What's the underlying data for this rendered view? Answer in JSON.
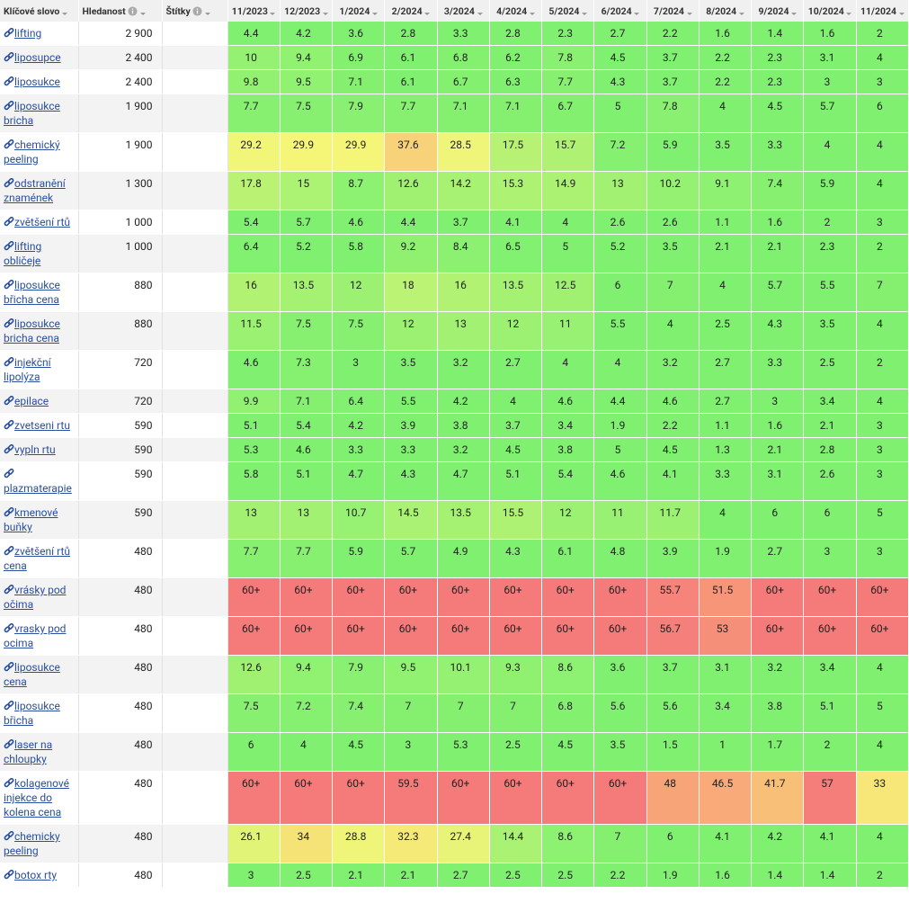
{
  "table": {
    "headers": [
      "Klíčové slovo",
      "Hledanost",
      "Štítky",
      "11/2023",
      "12/2023",
      "1/2024",
      "2/2024",
      "3/2024",
      "4/2024",
      "5/2024",
      "6/2024",
      "7/2024",
      "8/2024",
      "9/2024",
      "10/2024",
      "11/2024"
    ],
    "rows": [
      {
        "keyword": "lifting",
        "volume": "2 900",
        "positions": [
          4.4,
          4.2,
          3.6,
          2.8,
          3.3,
          2.8,
          2.3,
          2.7,
          2.2,
          1.6,
          1.4,
          1.6,
          2
        ]
      },
      {
        "keyword": "liposupce",
        "volume": "2 400",
        "positions": [
          10,
          9.4,
          6.9,
          6.1,
          6.8,
          6.2,
          7.8,
          4.5,
          3.7,
          2.2,
          2.3,
          3.1,
          4
        ]
      },
      {
        "keyword": "liposukce",
        "volume": "2 400",
        "positions": [
          9.8,
          9.5,
          7.1,
          6.1,
          6.7,
          6.3,
          7.7,
          4.3,
          3.7,
          2.2,
          2.3,
          3,
          3
        ]
      },
      {
        "keyword": "liposukce bricha",
        "volume": "1 900",
        "positions": [
          7.7,
          7.5,
          7.9,
          7.7,
          7.1,
          7.1,
          6.7,
          5,
          7.8,
          4,
          4.5,
          5.7,
          6
        ]
      },
      {
        "keyword": "chemický peeling",
        "volume": "1 900",
        "positions": [
          29.2,
          29.9,
          29.9,
          37.6,
          28.5,
          17.5,
          15.7,
          7.2,
          5.9,
          3.5,
          3.3,
          4,
          4
        ]
      },
      {
        "keyword": "odstranění znamének",
        "volume": "1 300",
        "positions": [
          17.8,
          15,
          8.7,
          12.6,
          14.2,
          15.3,
          14.9,
          13,
          10.2,
          9.1,
          7.4,
          5.9,
          4
        ]
      },
      {
        "keyword": "zvětšení rtů",
        "volume": "1 000",
        "positions": [
          5.4,
          5.7,
          4.6,
          4.4,
          3.7,
          4.1,
          4,
          2.6,
          2.6,
          1.1,
          1.6,
          2,
          3
        ]
      },
      {
        "keyword": "lifting obličeje",
        "volume": "1 000",
        "positions": [
          6.4,
          5.2,
          5.8,
          9.2,
          8.4,
          6.5,
          5,
          5.2,
          3.5,
          2.1,
          2.1,
          2.3,
          2
        ]
      },
      {
        "keyword": "liposukce břicha cena",
        "volume": "880",
        "positions": [
          16,
          13.5,
          12,
          18,
          16,
          13.5,
          12.5,
          6,
          7,
          4,
          5.7,
          5.5,
          7
        ]
      },
      {
        "keyword": "liposukce bricha cena",
        "volume": "880",
        "positions": [
          11.5,
          7.5,
          7.5,
          12,
          13,
          12,
          11,
          5.5,
          4,
          2.5,
          4.3,
          3.5,
          4
        ]
      },
      {
        "keyword": "injekční lipolýza",
        "volume": "720",
        "positions": [
          4.6,
          7.3,
          3,
          3.5,
          3.2,
          2.7,
          4,
          4,
          3.2,
          2.7,
          3.3,
          2.5,
          2
        ]
      },
      {
        "keyword": "epilace",
        "volume": "720",
        "positions": [
          9.9,
          7.1,
          6.4,
          5.5,
          4.2,
          4,
          4.6,
          4.4,
          4.6,
          2.7,
          3,
          3.4,
          4
        ]
      },
      {
        "keyword": "zvetseni rtu",
        "volume": "590",
        "positions": [
          5.1,
          5.4,
          4.2,
          3.9,
          3.8,
          3.7,
          3.4,
          1.9,
          2.2,
          1.1,
          1.6,
          2.1,
          3
        ]
      },
      {
        "keyword": "vypln rtu",
        "volume": "590",
        "positions": [
          5.3,
          4.6,
          3.3,
          3.3,
          3.2,
          4.5,
          3.8,
          5,
          4.5,
          1.3,
          2.1,
          2.8,
          3
        ]
      },
      {
        "keyword": "plazmaterapie",
        "volume": "590",
        "positions": [
          5.8,
          5.1,
          4.7,
          4.3,
          4.7,
          5.1,
          5.4,
          4.6,
          4.1,
          3.3,
          3.1,
          2.6,
          3
        ]
      },
      {
        "keyword": "kmenové buňky",
        "volume": "590",
        "positions": [
          13,
          13,
          10.7,
          14.5,
          13.5,
          15.5,
          12,
          11,
          11.7,
          4,
          6,
          6,
          5
        ]
      },
      {
        "keyword": "zvětšení rtů cena",
        "volume": "480",
        "positions": [
          7.7,
          7.7,
          5.9,
          5.7,
          4.9,
          4.3,
          6.1,
          4.8,
          3.9,
          1.9,
          2.7,
          3,
          3
        ]
      },
      {
        "keyword": "vrásky pod očima",
        "volume": "480",
        "positions": [
          "60+",
          "60+",
          "60+",
          "60+",
          "60+",
          "60+",
          "60+",
          "60+",
          55.7,
          51.5,
          "60+",
          "60+",
          "60+"
        ]
      },
      {
        "keyword": "vrasky pod ocima",
        "volume": "480",
        "positions": [
          "60+",
          "60+",
          "60+",
          "60+",
          "60+",
          "60+",
          "60+",
          "60+",
          56.7,
          53,
          "60+",
          "60+",
          "60+"
        ]
      },
      {
        "keyword": "liposukce cena",
        "volume": "480",
        "positions": [
          12.6,
          9.4,
          7.9,
          9.5,
          10.1,
          9.3,
          8.6,
          3.6,
          3.7,
          3.1,
          3.2,
          3.4,
          4
        ]
      },
      {
        "keyword": "liposukce břicha",
        "volume": "480",
        "positions": [
          7.5,
          7.2,
          7.4,
          7,
          7,
          7,
          6.8,
          5.6,
          5.6,
          3.4,
          3.8,
          5.1,
          5
        ]
      },
      {
        "keyword": "laser na chloupky",
        "volume": "480",
        "positions": [
          6,
          4,
          4.5,
          3,
          5.3,
          2.5,
          4.5,
          3.5,
          1.5,
          1,
          1.7,
          2,
          4
        ]
      },
      {
        "keyword": "kolagenové injekce do kolena cena",
        "volume": "480",
        "positions": [
          "60+",
          "60+",
          "60+",
          59.5,
          "60+",
          "60+",
          "60+",
          "60+",
          48,
          46.5,
          41.7,
          57,
          33
        ]
      },
      {
        "keyword": "chemicky peeling",
        "volume": "480",
        "positions": [
          26.1,
          34,
          28.8,
          32.3,
          27.4,
          14.4,
          8.6,
          7,
          6,
          4.1,
          4.2,
          4.1,
          4
        ]
      },
      {
        "keyword": "botox rty",
        "volume": "480",
        "positions": [
          3,
          2.5,
          2.1,
          2.1,
          2.7,
          2.5,
          2.5,
          2.2,
          1.9,
          1.6,
          1.4,
          1.4,
          2
        ]
      }
    ]
  }
}
